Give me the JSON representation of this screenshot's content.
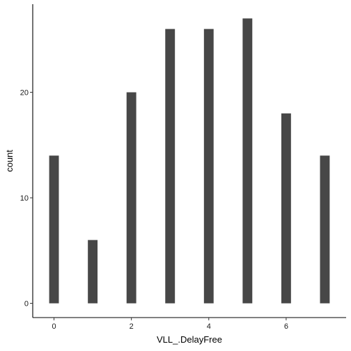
{
  "chart_data": {
    "type": "bar",
    "title": "",
    "xlabel": "VLL_.DelayFree",
    "ylabel": "count",
    "x": [
      0,
      1,
      2,
      3,
      4,
      5,
      6,
      7
    ],
    "values": [
      14,
      6,
      20,
      26,
      26,
      27,
      18,
      14
    ],
    "xlim": [
      -0.55,
      7.55
    ],
    "ylim": [
      -1.35,
      28.35
    ],
    "xticks": [
      0,
      2,
      4,
      6
    ],
    "yticks": [
      0,
      10,
      20
    ],
    "bar_width": 0.25,
    "grid": false,
    "legend": "none",
    "colors": {
      "bar": "#474747",
      "axis": "#000000",
      "background": "#ffffff"
    }
  }
}
